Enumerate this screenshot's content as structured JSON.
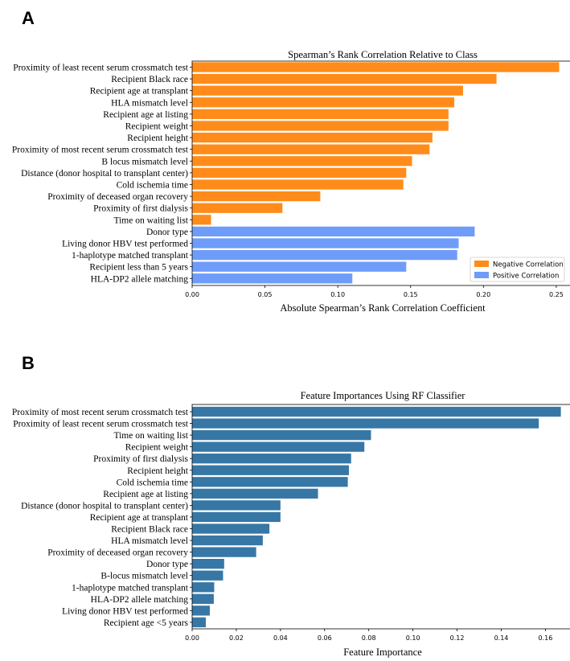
{
  "colors": {
    "negative": "#ff8c1a",
    "positive": "#6f9cf8",
    "rf": "#3777a6"
  },
  "chart_data": [
    {
      "panel": "A",
      "type": "bar",
      "orientation": "horizontal",
      "title": "Spearman’s Rank Correlation Relative to Class",
      "xlabel": "Absolute Spearman’s Rank Correlation Coefficient",
      "ylabel": "",
      "xlim": [
        0,
        0.26
      ],
      "xticks": [
        "0.00",
        "0.05",
        "0.10",
        "0.15",
        "0.20",
        "0.25"
      ],
      "xtick_values": [
        0,
        0.05,
        0.1,
        0.15,
        0.2,
        0.25
      ],
      "legend": {
        "location": "bottom-right",
        "entries": [
          {
            "name": "Negative Correlation",
            "color": "#ff8c1a"
          },
          {
            "name": "Positive Correlation",
            "color": "#6f9cf8"
          }
        ]
      },
      "categories": [
        "Proximity of least recent serum crossmatch test",
        "Recipient Black race",
        "Recipient age at transplant",
        "HLA mismatch level",
        "Recipient age at listing",
        "Recipient weight",
        "Recipient height",
        "Proximity of most recent serum crossmatch test",
        "B locus mismatch level",
        "Distance (donor hospital to transplant center)",
        "Cold ischemia time",
        "Proximity of deceased organ recovery",
        "Proximity of first dialysis",
        "Time on waiting list",
        "Donor type",
        "Living donor HBV test performed",
        "1-haplotype matched transplant",
        "Recipient less than 5 years",
        "HLA-DP2 allele matching"
      ],
      "values": [
        0.252,
        0.209,
        0.186,
        0.18,
        0.176,
        0.176,
        0.165,
        0.163,
        0.151,
        0.147,
        0.145,
        0.088,
        0.062,
        0.013,
        0.194,
        0.183,
        0.182,
        0.147,
        0.11
      ],
      "series_membership": [
        "Negative Correlation",
        "Negative Correlation",
        "Negative Correlation",
        "Negative Correlation",
        "Negative Correlation",
        "Negative Correlation",
        "Negative Correlation",
        "Negative Correlation",
        "Negative Correlation",
        "Negative Correlation",
        "Negative Correlation",
        "Negative Correlation",
        "Negative Correlation",
        "Negative Correlation",
        "Positive Correlation",
        "Positive Correlation",
        "Positive Correlation",
        "Positive Correlation",
        "Positive Correlation"
      ]
    },
    {
      "panel": "B",
      "type": "bar",
      "orientation": "horizontal",
      "title": "Feature Importances Using RF Classifier",
      "xlabel": "Feature Importance",
      "ylabel": "",
      "xlim": [
        0,
        0.1715
      ],
      "xticks": [
        "0.00",
        "0.02",
        "0.04",
        "0.06",
        "0.08",
        "0.10",
        "0.12",
        "0.14",
        "0.16"
      ],
      "xtick_values": [
        0,
        0.02,
        0.04,
        0.06,
        0.08,
        0.1,
        0.12,
        0.14,
        0.16
      ],
      "categories": [
        "Proximity of most recent serum crossmatch test",
        "Proximity of least recent serum crossmatch test",
        "Time on waiting list",
        "Recipient weight",
        "Proximity of first dialysis",
        "Recipient height",
        "Cold ischemia time",
        "Recipient age at listing",
        "Distance (donor hospital to transplant center)",
        "Recipient age at transplant",
        "Recipient Black race",
        "HLA mismatch level",
        "Proximity of deceased organ recovery",
        "Donor type",
        "B-locus mismatch level",
        "1-haplotype matched transplant",
        "HLA-DP2 allele matching",
        "Living donor HBV test performed",
        "Recipient age <5 years"
      ],
      "values": [
        0.167,
        0.157,
        0.081,
        0.078,
        0.072,
        0.071,
        0.0705,
        0.057,
        0.04,
        0.04,
        0.035,
        0.032,
        0.029,
        0.0145,
        0.014,
        0.01,
        0.0098,
        0.008,
        0.0062
      ]
    }
  ]
}
